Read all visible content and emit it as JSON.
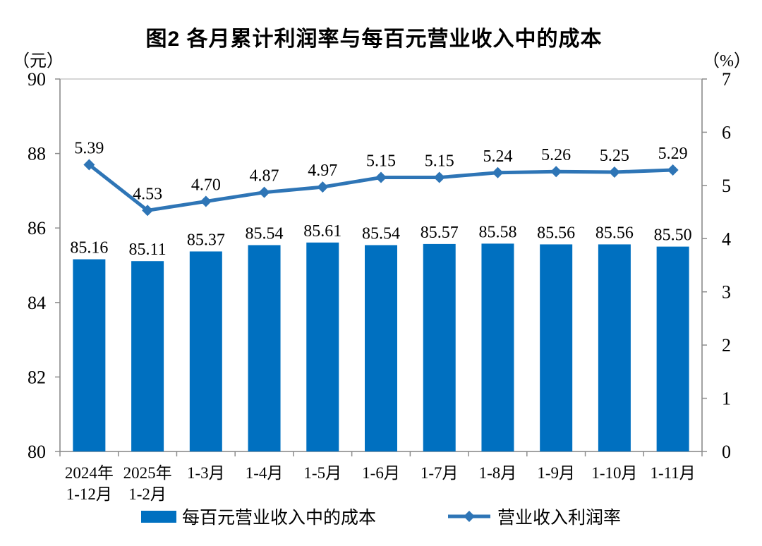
{
  "title": "图2 各月累计利润率与每百元营业收入中的成本",
  "left_axis": {
    "unit": "（元）",
    "ticks": [
      90,
      88,
      86,
      84,
      82,
      80
    ]
  },
  "right_axis": {
    "unit": "（%）",
    "ticks": [
      7,
      6,
      5,
      4,
      3,
      2,
      1,
      0
    ]
  },
  "legend": {
    "bar_label": "每百元营业收入中的成本",
    "line_label": "营业收入利润率"
  },
  "colors": {
    "bar": "#0070C0",
    "line": "#2E75B6",
    "axis": "#8C8C8C",
    "box": "#C9C9C9",
    "text": "#000000"
  },
  "chart_data": {
    "type": "bar",
    "combo": true,
    "categories": [
      [
        "2024年",
        "1-12月"
      ],
      [
        "2025年",
        "1-2月"
      ],
      [
        "1-3月"
      ],
      [
        "1-4月"
      ],
      [
        "1-5月"
      ],
      [
        "1-6月"
      ],
      [
        "1-7月"
      ],
      [
        "1-8月"
      ],
      [
        "1-9月"
      ],
      [
        "1-10月"
      ],
      [
        "1-11月"
      ]
    ],
    "series": [
      {
        "name": "每百元营业收入中的成本",
        "type": "bar",
        "axis": "left",
        "values": [
          85.16,
          85.11,
          85.37,
          85.54,
          85.61,
          85.54,
          85.57,
          85.58,
          85.56,
          85.56,
          85.5
        ]
      },
      {
        "name": "营业收入利润率",
        "type": "line",
        "axis": "right",
        "values": [
          5.39,
          4.53,
          4.7,
          4.87,
          4.97,
          5.15,
          5.15,
          5.24,
          5.26,
          5.25,
          5.29
        ]
      }
    ],
    "title": "图2 各月累计利润率与每百元营业收入中的成本",
    "xlabel": "",
    "ylabel_left": "（元）",
    "ylabel_right": "（%）",
    "left_ylim": [
      80,
      90
    ],
    "right_ylim": [
      0,
      7
    ],
    "grid": false,
    "legend_position": "bottom"
  }
}
